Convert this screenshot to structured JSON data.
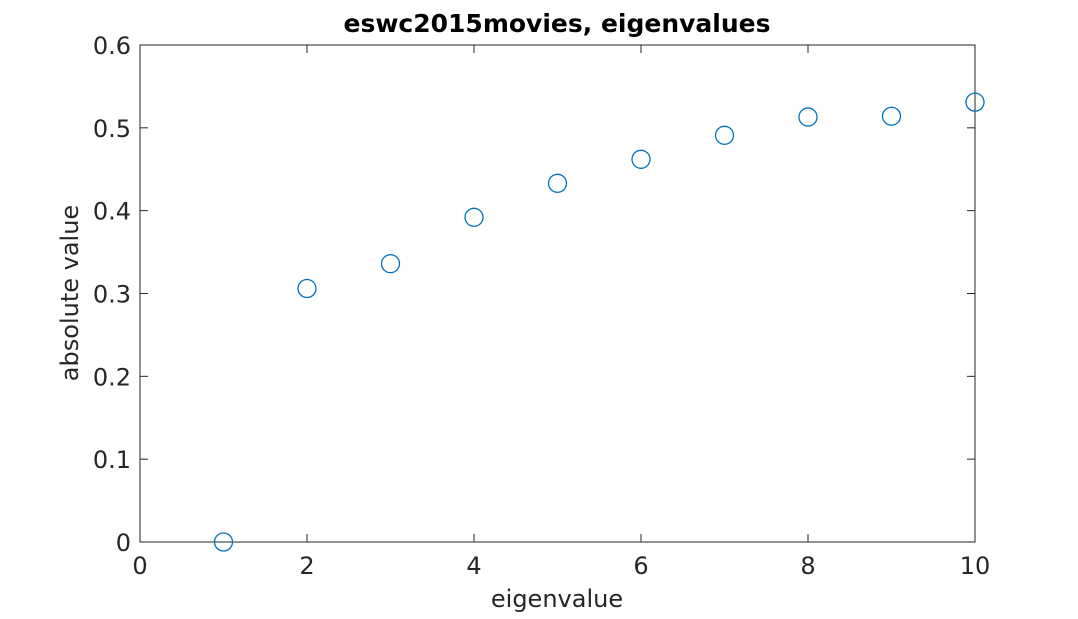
{
  "chart_data": {
    "type": "scatter",
    "title": "eswc2015movies, eigenvalues",
    "xlabel": "eigenvalue",
    "ylabel": "absolute value",
    "xlim": [
      0,
      10
    ],
    "ylim": [
      0,
      0.6
    ],
    "xticks": [
      0,
      2,
      4,
      6,
      8,
      10
    ],
    "xtick_labels": [
      "0",
      "2",
      "4",
      "6",
      "8",
      "10"
    ],
    "yticks": [
      0,
      0.1,
      0.2,
      0.3,
      0.4,
      0.5,
      0.6
    ],
    "ytick_labels": [
      "0",
      "0.1",
      "0.2",
      "0.3",
      "0.4",
      "0.5",
      "0.6"
    ],
    "grid": false,
    "marker": "open-circle",
    "marker_color": "#0072bd",
    "series": [
      {
        "x": [
          1,
          2,
          3,
          4,
          5,
          6,
          7,
          8,
          9,
          10
        ],
        "y": [
          0.0,
          0.306,
          0.336,
          0.392,
          0.433,
          0.462,
          0.491,
          0.513,
          0.514,
          0.531
        ]
      }
    ]
  }
}
